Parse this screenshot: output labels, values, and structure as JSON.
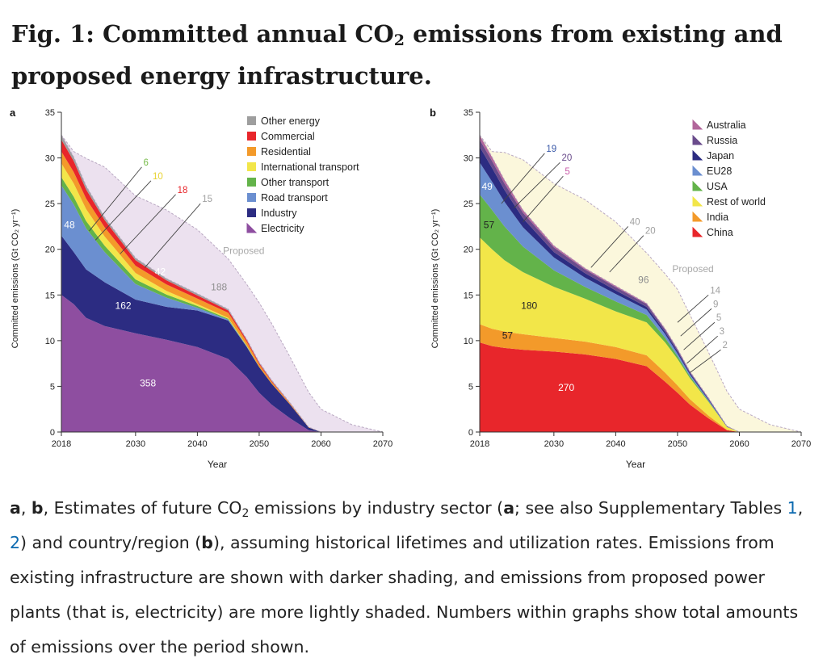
{
  "figure": {
    "title_prefix": "Fig. 1: Committed annual CO",
    "title_sub": "2",
    "title_suffix": " emissions from existing and proposed energy infrastructure.",
    "caption": {
      "a": "a",
      "sep1": ", ",
      "b": "b",
      "t1": ", Estimates of future CO",
      "sub": "2",
      "t2": " emissions by industry sector (",
      "a2": "a",
      "t3": "; see also Supplementary Tables ",
      "link1": "1",
      "sep2": ", ",
      "link2": "2",
      "t4": ") and country/region (",
      "b2": "b",
      "t5": "), assuming historical lifetimes and utilization rates. Emissions from existing infrastructure are shown with darker shading, and emissions from proposed power plants (that is, electricity) are more lightly shaded. Numbers within graphs show total amounts of emissions over the period shown."
    }
  },
  "chart_data": [
    {
      "panel": "a",
      "type": "area",
      "stacked": true,
      "xlabel": "Year",
      "ylabel": "Committed emissions (Gt CO₂ yr⁻¹)",
      "xlim": [
        2018,
        2070
      ],
      "ylim": [
        0,
        35
      ],
      "xticks": [
        2018,
        2030,
        2040,
        2050,
        2060,
        2070
      ],
      "yticks": [
        0,
        5,
        10,
        15,
        20,
        25,
        30,
        35
      ],
      "grid": false,
      "legend_position": "top-right",
      "x": [
        2018,
        2020,
        2022,
        2025,
        2030,
        2035,
        2040,
        2045,
        2048,
        2050,
        2052,
        2055,
        2058,
        2060,
        2065,
        2070
      ],
      "series": [
        {
          "name": "Electricity",
          "color": "#8e4ea0",
          "values": [
            15,
            14,
            12.5,
            11.6,
            10.8,
            10.1,
            9.3,
            8.0,
            6.0,
            4.3,
            3.0,
            1.5,
            0.2,
            0,
            0,
            0
          ]
        },
        {
          "name": "Industry",
          "color": "#2c2c82",
          "values": [
            6.5,
            5.7,
            5.3,
            4.8,
            3.7,
            3.6,
            4.0,
            4.2,
            3.3,
            2.8,
            2.3,
            1.5,
            0.3,
            0,
            0,
            0
          ]
        },
        {
          "name": "Road transport",
          "color": "#6b8fd0",
          "values": [
            5.5,
            5.2,
            4.5,
            3.3,
            1.7,
            1.0,
            0.3,
            0.1,
            0.05,
            0,
            0,
            0,
            0,
            0,
            0,
            0
          ]
        },
        {
          "name": "Other transport",
          "color": "#63b34a",
          "values": [
            0.9,
            0.85,
            0.8,
            0.7,
            0.5,
            0.35,
            0.2,
            0.1,
            0.05,
            0,
            0,
            0,
            0,
            0,
            0,
            0
          ]
        },
        {
          "name": "International transport",
          "color": "#f2e649",
          "values": [
            1.5,
            1.45,
            1.3,
            1.0,
            0.7,
            0.4,
            0.2,
            0.1,
            0.05,
            0,
            0,
            0,
            0,
            0,
            0,
            0
          ]
        },
        {
          "name": "Residential",
          "color": "#f39a2a",
          "values": [
            1.3,
            1.25,
            1.15,
            1.0,
            0.8,
            0.7,
            0.6,
            0.55,
            0.4,
            0.3,
            0.2,
            0.1,
            0.05,
            0,
            0,
            0
          ]
        },
        {
          "name": "Commercial",
          "color": "#e8262b",
          "values": [
            1.3,
            1.2,
            1.0,
            0.8,
            0.6,
            0.45,
            0.35,
            0.25,
            0.2,
            0.15,
            0.1,
            0.05,
            0,
            0,
            0,
            0
          ]
        },
        {
          "name": "Other energy",
          "color": "#9e9e9e",
          "values": [
            0.5,
            0.45,
            0.4,
            0.3,
            0.25,
            0.2,
            0.2,
            0.15,
            0.1,
            0.1,
            0.1,
            0.05,
            0,
            0,
            0,
            0
          ]
        },
        {
          "name": "Proposed",
          "color": "#ece1ef",
          "values": [
            0,
            0.6,
            3.0,
            5.5,
            6.8,
            7.5,
            7.0,
            5.5,
            6.0,
            6.5,
            6.2,
            5.0,
            3.8,
            2.5,
            0.8,
            0
          ]
        }
      ],
      "area_labels": [
        {
          "text": "358",
          "x": 2032,
          "y": 5
        },
        {
          "text": "162",
          "x": 2028,
          "y": 13.5
        },
        {
          "text": "48",
          "x": 2019.3,
          "y": 22.3
        },
        {
          "text": "42",
          "x": 2034,
          "y": 17.2
        },
        {
          "text": "188",
          "x": 2043.5,
          "y": 15.5
        }
      ],
      "callouts": [
        {
          "text": "6",
          "color": "#77bb4a",
          "from": [
            2022.5,
            22
          ],
          "to": [
            2031,
            29
          ]
        },
        {
          "text": "10",
          "color": "#e8d331",
          "from": [
            2023.5,
            21
          ],
          "to": [
            2032.5,
            27.5
          ]
        },
        {
          "text": "18",
          "color": "#e8262b",
          "from": [
            2027.5,
            19.5
          ],
          "to": [
            2036.5,
            26
          ]
        },
        {
          "text": "15",
          "color": "#a0a0a0",
          "from": [
            2031.5,
            18
          ],
          "to": [
            2040.5,
            25
          ]
        }
      ],
      "annotations": [
        {
          "text": "Proposed",
          "x": 2047.5,
          "y": 19.5
        }
      ]
    },
    {
      "panel": "b",
      "type": "area",
      "stacked": true,
      "xlabel": "Year",
      "ylabel": "Committed emissions (Gt CO₂ yr⁻¹)",
      "xlim": [
        2018,
        2070
      ],
      "ylim": [
        0,
        35
      ],
      "xticks": [
        2018,
        2030,
        2040,
        2050,
        2060,
        2070
      ],
      "yticks": [
        0,
        5,
        10,
        15,
        20,
        25,
        30,
        35
      ],
      "grid": false,
      "legend_position": "top-right",
      "x": [
        2018,
        2020,
        2022,
        2025,
        2030,
        2035,
        2040,
        2045,
        2048,
        2050,
        2052,
        2055,
        2058,
        2060,
        2065,
        2070
      ],
      "series": [
        {
          "name": "China",
          "color": "#e8262b",
          "values": [
            9.8,
            9.4,
            9.2,
            9.0,
            8.8,
            8.5,
            8.0,
            7.2,
            5.5,
            4.3,
            3.0,
            1.5,
            0.2,
            0,
            0,
            0
          ]
        },
        {
          "name": "India",
          "color": "#f39a2a",
          "values": [
            2.0,
            1.9,
            1.8,
            1.7,
            1.5,
            1.4,
            1.3,
            1.2,
            1.0,
            0.8,
            0.6,
            0.3,
            0.05,
            0,
            0,
            0
          ]
        },
        {
          "name": "Rest of world",
          "color": "#f2e649",
          "values": [
            9.5,
            8.7,
            7.8,
            6.8,
            5.6,
            4.7,
            3.9,
            3.6,
            3.3,
            2.9,
            2.3,
            1.5,
            0.3,
            0,
            0,
            0
          ]
        },
        {
          "name": "USA",
          "color": "#63b34a",
          "values": [
            4.7,
            4.3,
            3.7,
            2.8,
            1.8,
            1.3,
            1.1,
            0.8,
            0.5,
            0.3,
            0.2,
            0.1,
            0,
            0,
            0,
            0
          ]
        },
        {
          "name": "EU28",
          "color": "#6b8fd0",
          "values": [
            3.5,
            3.1,
            2.7,
            2.1,
            1.4,
            1.0,
            0.8,
            0.6,
            0.4,
            0.3,
            0.2,
            0.1,
            0,
            0,
            0,
            0
          ]
        },
        {
          "name": "Japan",
          "color": "#2c2c82",
          "values": [
            1.7,
            1.5,
            1.3,
            1.0,
            0.6,
            0.5,
            0.4,
            0.3,
            0.25,
            0.2,
            0.15,
            0.1,
            0.05,
            0,
            0,
            0
          ]
        },
        {
          "name": "Russia",
          "color": "#6a4c8c",
          "values": [
            0.8,
            0.75,
            0.7,
            0.6,
            0.5,
            0.4,
            0.35,
            0.3,
            0.25,
            0.2,
            0.15,
            0.1,
            0.05,
            0,
            0,
            0
          ]
        },
        {
          "name": "Australia",
          "color": "#b2669b",
          "values": [
            0.5,
            0.45,
            0.4,
            0.3,
            0.2,
            0.15,
            0.15,
            0.1,
            0.1,
            0.1,
            0.05,
            0.05,
            0,
            0,
            0,
            0
          ]
        },
        {
          "name": "Proposed",
          "color": "#fbf7dc",
          "values": [
            0,
            0.6,
            3.0,
            5.5,
            6.8,
            7.5,
            7.0,
            5.5,
            6.0,
            6.5,
            6.2,
            5.0,
            3.8,
            2.5,
            0.8,
            0
          ]
        }
      ],
      "area_labels": [
        {
          "text": "270",
          "x": 2032,
          "y": 4.5
        },
        {
          "text": "57",
          "x": 2022.5,
          "y": 10.2
        },
        {
          "text": "180",
          "x": 2026,
          "y": 13.5
        },
        {
          "text": "57",
          "x": 2019.5,
          "y": 22.3
        },
        {
          "text": "49",
          "x": 2019.2,
          "y": 26.5
        },
        {
          "text": "96",
          "x": 2044.5,
          "y": 16.3
        }
      ],
      "callouts": [
        {
          "text": "19",
          "color": "#3a59a8",
          "from": [
            2021.5,
            25
          ],
          "to": [
            2028.5,
            30.5
          ]
        },
        {
          "text": "20",
          "color": "#6a4c8c",
          "from": [
            2023.5,
            24.5
          ],
          "to": [
            2031,
            29.5
          ]
        },
        {
          "text": "5",
          "color": "#c85aa8",
          "from": [
            2025,
            23
          ],
          "to": [
            2031.5,
            28
          ]
        },
        {
          "text": "40",
          "color": "#a0a0a0",
          "from": [
            2036,
            18
          ],
          "to": [
            2042,
            22.5
          ]
        },
        {
          "text": "20",
          "color": "#a0a0a0",
          "from": [
            2039,
            17.5
          ],
          "to": [
            2044.5,
            21.5
          ]
        },
        {
          "text": "14",
          "color": "#a0a0a0",
          "from": [
            2050,
            12
          ],
          "to": [
            2055,
            15
          ]
        },
        {
          "text": "9",
          "color": "#a0a0a0",
          "from": [
            2050.5,
            10.5
          ],
          "to": [
            2055.5,
            13.5
          ]
        },
        {
          "text": "5",
          "color": "#a0a0a0",
          "from": [
            2051,
            9
          ],
          "to": [
            2056,
            12
          ]
        },
        {
          "text": "3",
          "color": "#a0a0a0",
          "from": [
            2051.5,
            7.5
          ],
          "to": [
            2056.5,
            10.5
          ]
        },
        {
          "text": "2",
          "color": "#a0a0a0",
          "from": [
            2052,
            6.5
          ],
          "to": [
            2057,
            9
          ]
        }
      ],
      "annotations": [
        {
          "text": "Proposed",
          "x": 2052.5,
          "y": 17.5
        }
      ]
    }
  ]
}
